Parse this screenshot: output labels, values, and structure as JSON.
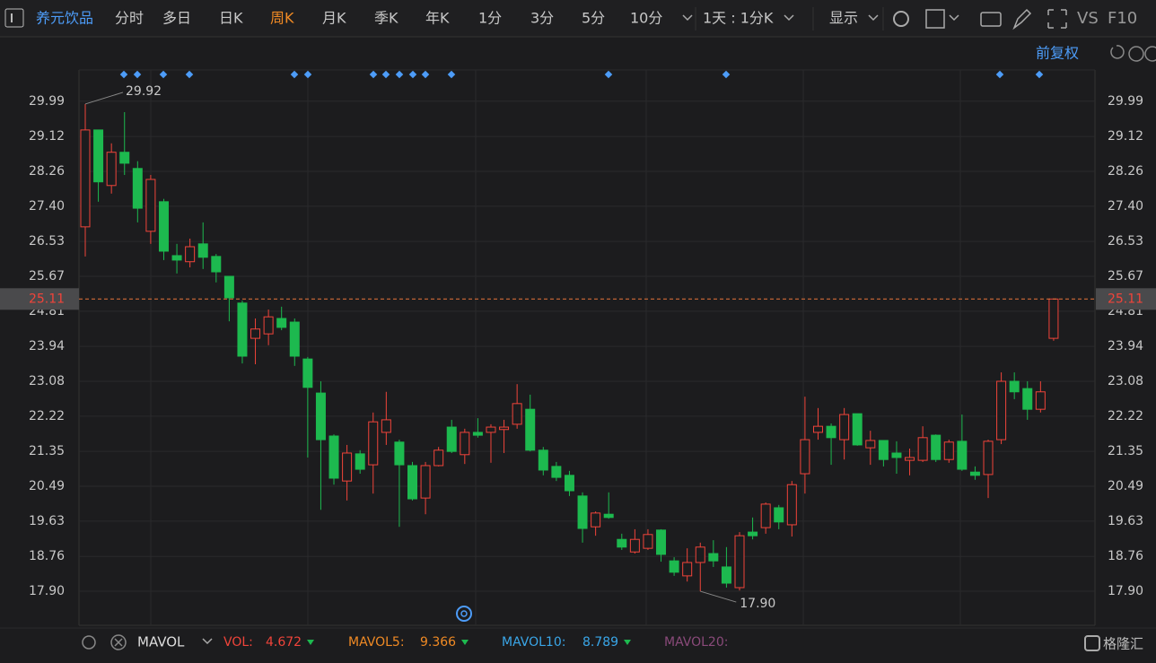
{
  "toolbar": {
    "stock": "养元饮品",
    "periods": [
      "分时",
      "多日",
      "日K",
      "周K",
      "月K",
      "季K",
      "年K",
      "1分",
      "3分",
      "5分",
      "10分"
    ],
    "active": 3,
    "range": "1天 : 1分K",
    "display": "显示",
    "vs": "VS",
    "f10": "F10",
    "adjust": "前复权"
  },
  "chart_data": {
    "type": "candlestick",
    "open": [
      26.89,
      29.28,
      27.91,
      28.73,
      28.33,
      26.78,
      27.51,
      26.18,
      26.03,
      26.47,
      26.16,
      25.67,
      25.01,
      24.14,
      24.25,
      24.63,
      24.54,
      23.63,
      22.79,
      21.73,
      20.62,
      21.29,
      21.02,
      21.82,
      21.58,
      21.0,
      20.2,
      21.0,
      21.95,
      21.27,
      21.82,
      21.82,
      21.89,
      22.02,
      22.39,
      21.38,
      20.98,
      20.76,
      20.25,
      19.49,
      19.8,
      19.18,
      18.87,
      18.96,
      19.41,
      18.65,
      18.28,
      18.61,
      18.83,
      18.5,
      17.99,
      19.36,
      19.47,
      19.96,
      19.54,
      20.8,
      21.82,
      21.97,
      21.64,
      22.28,
      21.44,
      21.62,
      21.31,
      21.13,
      21.13,
      21.75,
      21.15,
      21.6,
      20.84,
      20.78,
      21.64,
      23.08,
      22.9,
      22.39,
      24.14
    ],
    "high": [
      29.92,
      29.28,
      28.95,
      29.72,
      28.51,
      28.17,
      27.58,
      26.47,
      26.6,
      27.0,
      26.22,
      25.67,
      25.07,
      24.63,
      24.85,
      24.92,
      24.63,
      23.68,
      23.08,
      21.77,
      21.51,
      21.38,
      22.31,
      22.82,
      21.64,
      21.09,
      21.09,
      21.46,
      22.13,
      21.91,
      22.17,
      22.02,
      22.13,
      23.01,
      22.75,
      21.46,
      21.09,
      20.87,
      20.34,
      19.87,
      20.34,
      19.32,
      19.43,
      19.43,
      19.43,
      18.74,
      18.96,
      19.1,
      19.16,
      18.99,
      19.36,
      19.72,
      20.09,
      20.03,
      20.62,
      22.7,
      22.42,
      22.04,
      22.42,
      22.28,
      21.86,
      21.62,
      21.6,
      21.42,
      21.97,
      21.77,
      21.64,
      22.26,
      20.98,
      21.64,
      23.3,
      23.3,
      23.08,
      23.08,
      25.11
    ],
    "low": [
      26.16,
      27.51,
      27.71,
      28.17,
      27.0,
      26.47,
      26.07,
      25.74,
      25.89,
      25.85,
      25.52,
      24.56,
      23.52,
      23.5,
      23.97,
      24.34,
      23.46,
      21.2,
      19.91,
      20.53,
      20.14,
      20.8,
      20.31,
      21.51,
      19.49,
      20.14,
      19.8,
      20.98,
      21.31,
      21.04,
      21.69,
      21.07,
      21.31,
      21.91,
      21.35,
      20.76,
      20.62,
      20.25,
      19.1,
      19.27,
      19.69,
      18.92,
      18.83,
      18.92,
      18.63,
      18.28,
      18.14,
      17.9,
      18.5,
      17.99,
      17.92,
      19.18,
      19.32,
      19.43,
      19.25,
      20.31,
      21.64,
      21.02,
      21.15,
      21.49,
      21.02,
      20.98,
      20.8,
      20.76,
      21.09,
      21.09,
      21.07,
      20.87,
      20.65,
      20.2,
      21.53,
      22.64,
      22.13,
      22.31,
      24.08
    ],
    "close": [
      29.28,
      28.0,
      28.73,
      28.46,
      27.35,
      28.06,
      26.29,
      26.07,
      26.4,
      26.14,
      25.78,
      25.14,
      23.7,
      24.37,
      24.67,
      24.41,
      23.7,
      22.93,
      21.64,
      20.69,
      21.31,
      20.91,
      22.08,
      22.13,
      21.02,
      20.18,
      21.0,
      21.38,
      21.35,
      21.82,
      21.75,
      21.95,
      21.95,
      22.53,
      21.38,
      20.89,
      20.71,
      20.38,
      19.45,
      19.83,
      19.72,
      18.99,
      19.18,
      19.3,
      18.81,
      18.37,
      18.61,
      18.99,
      18.65,
      18.1,
      19.27,
      19.27,
      20.05,
      19.61,
      20.53,
      21.64,
      21.97,
      21.69,
      22.26,
      21.51,
      21.62,
      21.15,
      21.2,
      21.2,
      21.69,
      21.15,
      21.58,
      20.91,
      20.76,
      21.6,
      23.08,
      22.82,
      22.39,
      22.82,
      25.11
    ],
    "up_color": "#f0443a",
    "down_color": "#1db94f",
    "ylim": [
      17.06,
      30.76
    ],
    "yticks": [
      29.99,
      29.12,
      28.26,
      {
        "value": 27.4,
        "label": "27.40"
      },
      26.53,
      25.67,
      24.81,
      23.94,
      23.08,
      22.22,
      21.35,
      20.49,
      19.63,
      18.76,
      {
        "value": 17.9,
        "label": "17.90"
      }
    ],
    "grid": true,
    "annotations": {
      "high": "29.92",
      "low": "17.90",
      "last": 25.11,
      "last_label": "25.11"
    },
    "indicator": {
      "name": "MAVOL",
      "vol_label": "VOL:",
      "vol": 4.672,
      "ma5_label": "MAVOL5:",
      "ma5": 9.366,
      "ma10_label": "MAVOL10:",
      "ma10": 8.789,
      "ma20_label": "MAVOL20:"
    },
    "brand": "格隆汇"
  }
}
